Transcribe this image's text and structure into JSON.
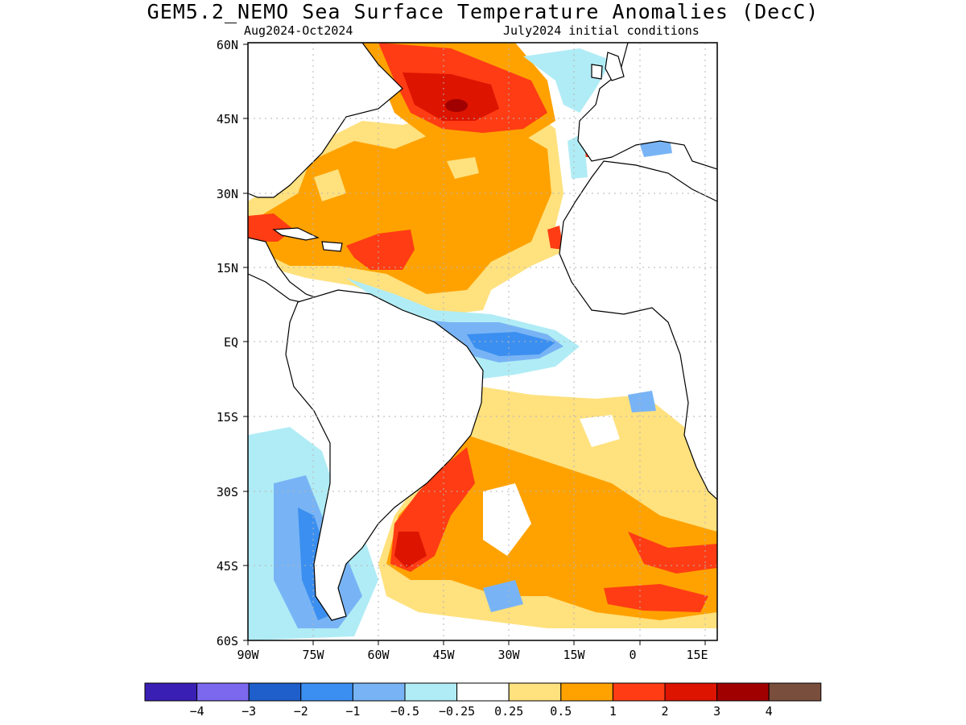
{
  "title": "GEM5.2_NEMO Sea Surface Temperature Anomalies (DecC)",
  "subtitle_left": "Aug2024-Oct2024",
  "subtitle_right": "July2024 initial conditions",
  "map": {
    "lon_range": [
      -90,
      17.5
    ],
    "lat_range": [
      -60,
      60
    ],
    "lat_labels": [
      "60N",
      "45N",
      "30N",
      "15N",
      "EQ",
      "15S",
      "30S",
      "45S",
      "60S"
    ],
    "lon_labels": [
      "90W",
      "75W",
      "60W",
      "45W",
      "30W",
      "15W",
      "0",
      "15E"
    ]
  },
  "legend": {
    "colors": [
      "#3a1fb5",
      "#7b68ee",
      "#1e5fcc",
      "#3b8ff0",
      "#78b4f5",
      "#b0ecf5",
      "#ffffff",
      "#ffe17e",
      "#ffa200",
      "#ff3c14",
      "#dc1400",
      "#a00000",
      "#7a4e3c"
    ],
    "labels": [
      "-4",
      "-3",
      "-2",
      "-1",
      "-0.5",
      "-0.25",
      "0.25",
      "0.5",
      "1",
      "2",
      "3",
      "4"
    ]
  }
}
